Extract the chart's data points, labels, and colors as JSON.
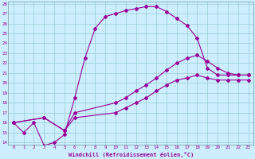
{
  "xlabel": "Windchill (Refroidissement éolien,°C)",
  "bg_color": "#cceeff",
  "line_color": "#990099",
  "grid_color": "#99cccc",
  "ylim": [
    14,
    28
  ],
  "xlim": [
    0,
    23
  ],
  "yticks": [
    14,
    15,
    16,
    17,
    18,
    19,
    20,
    21,
    22,
    23,
    24,
    25,
    26,
    27,
    28
  ],
  "xticks": [
    0,
    1,
    2,
    3,
    4,
    5,
    6,
    7,
    8,
    9,
    10,
    11,
    12,
    13,
    14,
    15,
    16,
    17,
    18,
    19,
    20,
    21,
    22,
    23
  ],
  "line1_x": [
    0,
    1,
    2,
    3,
    4,
    5,
    6,
    7,
    8,
    9,
    10,
    11,
    12,
    13,
    14,
    15,
    16,
    17,
    18,
    19,
    20,
    21,
    22,
    23
  ],
  "line1_y": [
    16.0,
    15.0,
    16.0,
    13.7,
    14.0,
    14.8,
    18.5,
    22.5,
    25.5,
    26.7,
    27.0,
    27.3,
    27.5,
    27.7,
    27.7,
    27.2,
    26.5,
    25.8,
    24.5,
    21.5,
    20.8,
    20.8,
    20.8,
    20.8
  ],
  "line2_x": [
    0,
    3,
    5,
    6,
    10,
    11,
    12,
    13,
    14,
    15,
    16,
    17,
    18,
    19,
    20,
    21,
    22,
    23
  ],
  "line2_y": [
    16.0,
    16.5,
    15.2,
    17.0,
    18.0,
    18.5,
    19.2,
    19.8,
    20.5,
    21.3,
    22.0,
    22.5,
    22.8,
    22.2,
    21.5,
    21.0,
    20.8,
    20.8
  ],
  "line3_x": [
    0,
    3,
    5,
    6,
    10,
    11,
    12,
    13,
    14,
    15,
    16,
    17,
    18,
    19,
    20,
    21,
    22,
    23
  ],
  "line3_y": [
    16.0,
    16.5,
    15.2,
    16.5,
    17.0,
    17.5,
    18.0,
    18.5,
    19.2,
    19.8,
    20.3,
    20.5,
    20.8,
    20.5,
    20.3,
    20.3,
    20.3,
    20.3
  ]
}
